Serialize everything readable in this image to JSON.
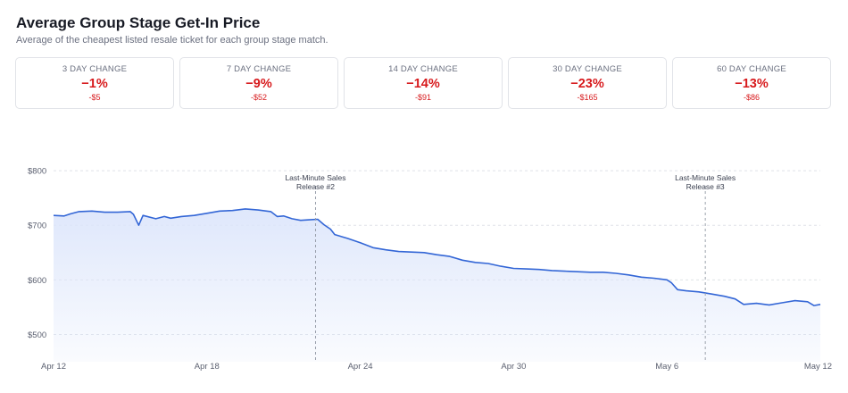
{
  "header": {
    "title": "Average Group Stage Get-In Price",
    "subtitle": "Average of the cheapest listed resale ticket for each group stage match."
  },
  "cards": [
    {
      "label": "3 DAY CHANGE",
      "pct": "−1%",
      "amount": "-$5"
    },
    {
      "label": "7 DAY CHANGE",
      "pct": "−9%",
      "amount": "-$52"
    },
    {
      "label": "14 DAY CHANGE",
      "pct": "−14%",
      "amount": "-$91"
    },
    {
      "label": "30 DAY CHANGE",
      "pct": "−23%",
      "amount": "-$165"
    },
    {
      "label": "60 DAY CHANGE",
      "pct": "−13%",
      "amount": "-$86"
    }
  ],
  "colors": {
    "negative": "#d7191c",
    "line": "#3366d6",
    "fill_top": "#dde6fb",
    "grid": "#dfe2e8",
    "axis_text": "#5b6070"
  },
  "chart_data": {
    "type": "area",
    "title": "",
    "xlabel": "",
    "ylabel": "",
    "ylim": [
      450,
      810
    ],
    "yticks": [
      500,
      600,
      700,
      800
    ],
    "ytick_labels": [
      "$500",
      "$600",
      "$700",
      "$800"
    ],
    "xlim": [
      "2025-04-12",
      "2025-05-12"
    ],
    "xticks": [
      {
        "date": "2025-04-12",
        "label": "Apr 12"
      },
      {
        "date": "2025-04-18",
        "label": "Apr 18"
      },
      {
        "date": "2025-04-24",
        "label": "Apr 24"
      },
      {
        "date": "2025-04-30",
        "label": "Apr 30"
      },
      {
        "date": "2025-05-06",
        "label": "May 6"
      },
      {
        "date": "2025-05-12",
        "label": "May 12"
      }
    ],
    "grid": "horizontal-dashed",
    "annotations": [
      {
        "date": "2025-04-22T06:00",
        "lines": [
          "Last-Minute Sales",
          "Release #2"
        ]
      },
      {
        "date": "2025-05-07T12:00",
        "lines": [
          "Last-Minute Sales",
          "Release #3"
        ]
      }
    ],
    "series": [
      {
        "name": "",
        "points": [
          [
            "2025-04-12T00:00",
            718
          ],
          [
            "2025-04-12T10:00",
            717
          ],
          [
            "2025-04-12T16:00",
            721
          ],
          [
            "2025-04-13T00:00",
            725
          ],
          [
            "2025-04-13T12:00",
            726
          ],
          [
            "2025-04-14T00:00",
            724
          ],
          [
            "2025-04-14T12:00",
            724
          ],
          [
            "2025-04-15T00:00",
            725
          ],
          [
            "2025-04-15T03:00",
            720
          ],
          [
            "2025-04-15T08:00",
            700
          ],
          [
            "2025-04-15T12:00",
            718
          ],
          [
            "2025-04-16T00:00",
            712
          ],
          [
            "2025-04-16T08:00",
            716
          ],
          [
            "2025-04-16T14:00",
            713
          ],
          [
            "2025-04-17T00:00",
            716
          ],
          [
            "2025-04-17T12:00",
            718
          ],
          [
            "2025-04-18T00:00",
            722
          ],
          [
            "2025-04-18T12:00",
            726
          ],
          [
            "2025-04-19T00:00",
            727
          ],
          [
            "2025-04-19T12:00",
            730
          ],
          [
            "2025-04-20T00:00",
            728
          ],
          [
            "2025-04-20T12:00",
            725
          ],
          [
            "2025-04-20T18:00",
            716
          ],
          [
            "2025-04-21T00:00",
            717
          ],
          [
            "2025-04-21T08:00",
            712
          ],
          [
            "2025-04-21T16:00",
            709
          ],
          [
            "2025-04-22T00:00",
            710
          ],
          [
            "2025-04-22T08:00",
            711
          ],
          [
            "2025-04-22T14:00",
            701
          ],
          [
            "2025-04-22T20:00",
            693
          ],
          [
            "2025-04-23T00:00",
            683
          ],
          [
            "2025-04-23T12:00",
            676
          ],
          [
            "2025-04-24T00:00",
            668
          ],
          [
            "2025-04-24T12:00",
            659
          ],
          [
            "2025-04-25T00:00",
            655
          ],
          [
            "2025-04-25T12:00",
            652
          ],
          [
            "2025-04-26T00:00",
            651
          ],
          [
            "2025-04-26T12:00",
            650
          ],
          [
            "2025-04-27T00:00",
            646
          ],
          [
            "2025-04-27T12:00",
            643
          ],
          [
            "2025-04-28T00:00",
            636
          ],
          [
            "2025-04-28T12:00",
            632
          ],
          [
            "2025-04-29T00:00",
            630
          ],
          [
            "2025-04-29T12:00",
            625
          ],
          [
            "2025-04-30T00:00",
            621
          ],
          [
            "2025-04-30T12:00",
            620
          ],
          [
            "2025-05-01T00:00",
            619
          ],
          [
            "2025-05-01T12:00",
            617
          ],
          [
            "2025-05-02T00:00",
            616
          ],
          [
            "2025-05-02T12:00",
            615
          ],
          [
            "2025-05-03T00:00",
            614
          ],
          [
            "2025-05-03T12:00",
            614
          ],
          [
            "2025-05-04T00:00",
            612
          ],
          [
            "2025-05-04T12:00",
            609
          ],
          [
            "2025-05-05T00:00",
            605
          ],
          [
            "2025-05-05T12:00",
            603
          ],
          [
            "2025-05-06T00:00",
            600
          ],
          [
            "2025-05-06T04:00",
            595
          ],
          [
            "2025-05-06T10:00",
            582
          ],
          [
            "2025-05-06T18:00",
            580
          ],
          [
            "2025-05-07T06:00",
            578
          ],
          [
            "2025-05-07T18:00",
            574
          ],
          [
            "2025-05-08T06:00",
            570
          ],
          [
            "2025-05-08T16:00",
            565
          ],
          [
            "2025-05-09T00:00",
            555
          ],
          [
            "2025-05-09T12:00",
            557
          ],
          [
            "2025-05-10T00:00",
            554
          ],
          [
            "2025-05-10T12:00",
            558
          ],
          [
            "2025-05-11T00:00",
            562
          ],
          [
            "2025-05-11T12:00",
            560
          ],
          [
            "2025-05-11T18:00",
            553
          ],
          [
            "2025-05-12T00:00",
            555
          ]
        ]
      }
    ]
  }
}
